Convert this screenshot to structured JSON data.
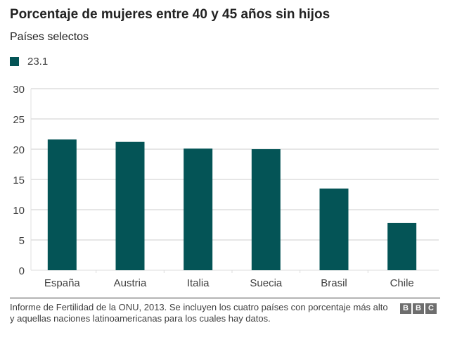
{
  "header": {
    "title": "Porcentaje de mujeres entre 40 y 45 años sin hijos",
    "subtitle": "Países selectos"
  },
  "legend": {
    "label": "23.1",
    "color": "#045456"
  },
  "chart_data": {
    "type": "bar",
    "title": "Porcentaje de mujeres entre 40 y 45 años sin hijos",
    "subtitle": "Países selectos",
    "categories": [
      "España",
      "Austria",
      "Italia",
      "Suecia",
      "Brasil",
      "Chile"
    ],
    "series": [
      {
        "name": "23.1",
        "values": [
          21.6,
          21.2,
          20.1,
          20.0,
          13.5,
          7.8
        ],
        "color": "#045456"
      }
    ],
    "xlabel": "",
    "ylabel": "",
    "ylim": [
      0,
      30
    ],
    "yticks": [
      0,
      5,
      10,
      15,
      20,
      25,
      30
    ],
    "grid": true,
    "legend_position": "top-left"
  },
  "footer": {
    "source": "Informe de Fertilidad de la ONU, 2013. Se incluyen los cuatro países con porcentaje más alto y aquellas naciones latinoamericanas para los cuales hay datos.",
    "logo_letters": [
      "B",
      "B",
      "C"
    ]
  }
}
